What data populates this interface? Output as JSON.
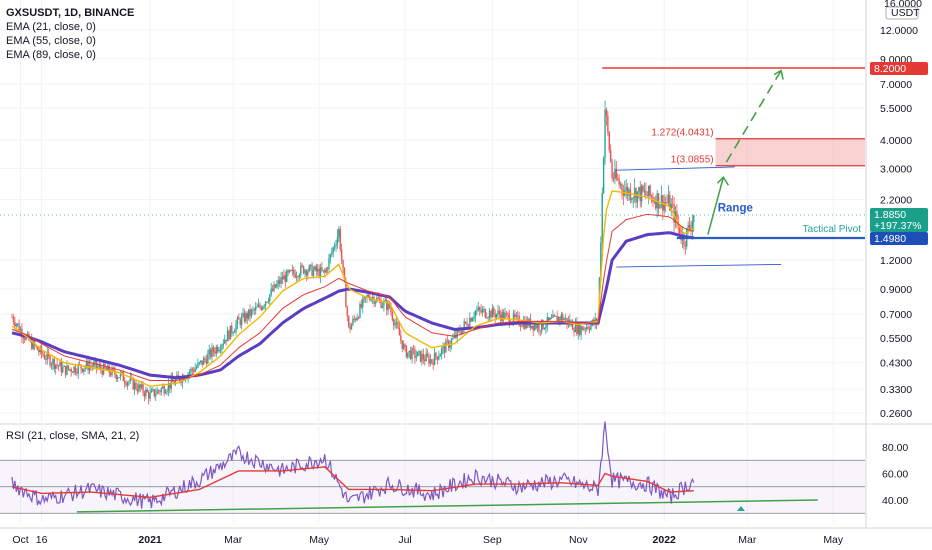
{
  "header": {
    "symbol_line": "GXSUSDT, 1D, BINANCE",
    "indicators": [
      "EMA (21, close, 0)",
      "EMA (55, close, 0)",
      "EMA (89, close, 0)"
    ],
    "rsi_label": "RSI (21, close, SMA, 21, 2)"
  },
  "price_axis": {
    "top_label": "16.0000",
    "unit": "USDT",
    "ticks": [
      "12.0000",
      "9.0000",
      "7.0000",
      "5.5000",
      "4.0000",
      "3.0000",
      "2.2000",
      "1.2000",
      "0.9000",
      "0.7000",
      "0.5500",
      "0.4300",
      "0.3300",
      "0.2600"
    ]
  },
  "rsi_axis": {
    "ticks": [
      "80.00",
      "60.00",
      "40.00"
    ]
  },
  "time_axis": {
    "ticks": [
      "Oct",
      "16",
      "2021",
      "Mar",
      "May",
      "Jul",
      "Sep",
      "Nov",
      "2022",
      "Mar",
      "May"
    ]
  },
  "annotations": {
    "range": "Range",
    "tactical_pivot": "Tactical Pivot",
    "fib_1272": "1.272(4.0431)",
    "fib_1": "1(3.0855)"
  },
  "price_tags": {
    "target": "8.2000",
    "last": "1.8850",
    "change": "+197.37%",
    "pivot": "1.4980"
  },
  "colors": {
    "up": "#26a69a",
    "down": "#ef5350",
    "ema21": "#f5b800",
    "ema55": "#e53935",
    "ema89": "#5b3cc4",
    "rsi": "#7e57c2",
    "rsi_ma": "#e53935",
    "target": "#e53935",
    "pivot": "#2a5cc8",
    "range": "#2a5cc8",
    "green": "#43a047"
  },
  "chart_data": [
    {
      "type": "line",
      "title": "GXSUSDT, 1D, BINANCE",
      "scale": "log",
      "ylim": [
        0.22,
        16
      ],
      "x": [
        "2020-09-25",
        "2020-10-05",
        "2020-10-16",
        "2020-11-01",
        "2020-11-20",
        "2020-12-10",
        "2021-01-01",
        "2021-01-20",
        "2021-02-05",
        "2021-02-20",
        "2021-03-05",
        "2021-03-20",
        "2021-04-05",
        "2021-04-20",
        "2021-05-05",
        "2021-05-15",
        "2021-05-22",
        "2021-06-05",
        "2021-06-20",
        "2021-07-01",
        "2021-07-20",
        "2021-08-05",
        "2021-08-20",
        "2021-09-05",
        "2021-09-20",
        "2021-10-05",
        "2021-10-20",
        "2021-11-01",
        "2021-11-15",
        "2021-11-20",
        "2021-11-25",
        "2021-12-05",
        "2021-12-20",
        "2022-01-05",
        "2022-01-15",
        "2022-01-22"
      ],
      "series": [
        {
          "name": "close",
          "values": [
            0.68,
            0.55,
            0.47,
            0.4,
            0.42,
            0.38,
            0.31,
            0.36,
            0.42,
            0.52,
            0.65,
            0.75,
            1.0,
            1.1,
            1.05,
            1.6,
            0.6,
            0.85,
            0.75,
            0.48,
            0.44,
            0.55,
            0.72,
            0.7,
            0.65,
            0.62,
            0.68,
            0.6,
            0.65,
            5.5,
            2.8,
            2.4,
            2.3,
            2.1,
            1.45,
            1.885
          ]
        },
        {
          "name": "EMA (21, close, 0)",
          "values": [
            0.62,
            0.56,
            0.49,
            0.43,
            0.41,
            0.39,
            0.34,
            0.35,
            0.39,
            0.46,
            0.57,
            0.68,
            0.88,
            1.0,
            1.02,
            1.15,
            0.9,
            0.82,
            0.78,
            0.58,
            0.5,
            0.52,
            0.62,
            0.67,
            0.66,
            0.64,
            0.65,
            0.63,
            0.65,
            1.9,
            2.4,
            2.35,
            2.25,
            2.05,
            1.55,
            1.65
          ]
        },
        {
          "name": "EMA (55, close, 0)",
          "values": [
            0.6,
            0.57,
            0.52,
            0.46,
            0.43,
            0.4,
            0.36,
            0.36,
            0.38,
            0.42,
            0.5,
            0.58,
            0.74,
            0.85,
            0.92,
            1.0,
            0.95,
            0.88,
            0.83,
            0.68,
            0.58,
            0.56,
            0.6,
            0.64,
            0.65,
            0.65,
            0.65,
            0.64,
            0.64,
            1.1,
            1.6,
            1.8,
            1.9,
            1.85,
            1.65,
            1.6
          ]
        },
        {
          "name": "EMA (89, close, 0)",
          "values": [
            0.58,
            0.56,
            0.53,
            0.48,
            0.45,
            0.42,
            0.38,
            0.37,
            0.38,
            0.4,
            0.46,
            0.52,
            0.64,
            0.74,
            0.82,
            0.88,
            0.9,
            0.87,
            0.83,
            0.72,
            0.64,
            0.6,
            0.61,
            0.63,
            0.64,
            0.64,
            0.64,
            0.64,
            0.64,
            0.85,
            1.2,
            1.45,
            1.55,
            1.58,
            1.52,
            1.5
          ]
        }
      ],
      "levels": [
        {
          "label": "8.2000",
          "value": 8.2
        },
        {
          "label": "1.272(4.0431)",
          "value": 4.0431
        },
        {
          "label": "1(3.0855)",
          "value": 3.0855
        },
        {
          "label": "1.4980",
          "value": 1.498
        }
      ]
    },
    {
      "type": "line",
      "title": "RSI (21, close, SMA, 21, 2)",
      "ylim": [
        25,
        100
      ],
      "x": [
        "2020-09-25",
        "2020-10-16",
        "2020-11-20",
        "2021-01-01",
        "2021-02-05",
        "2021-03-05",
        "2021-04-05",
        "2021-05-05",
        "2021-05-22",
        "2021-06-20",
        "2021-07-20",
        "2021-08-20",
        "2021-09-20",
        "2021-10-20",
        "2021-11-15",
        "2021-11-20",
        "2021-11-25",
        "2021-12-20",
        "2022-01-05",
        "2022-01-22"
      ],
      "series": [
        {
          "name": "RSI",
          "values": [
            52,
            40,
            48,
            38,
            55,
            75,
            62,
            72,
            38,
            52,
            44,
            58,
            50,
            55,
            48,
            97,
            55,
            52,
            42,
            55
          ]
        },
        {
          "name": "RSI MA",
          "values": [
            50,
            45,
            46,
            42,
            48,
            62,
            62,
            65,
            48,
            48,
            47,
            52,
            52,
            53,
            51,
            60,
            58,
            54,
            46,
            47
          ]
        }
      ],
      "bands": [
        70,
        50,
        30
      ]
    }
  ]
}
